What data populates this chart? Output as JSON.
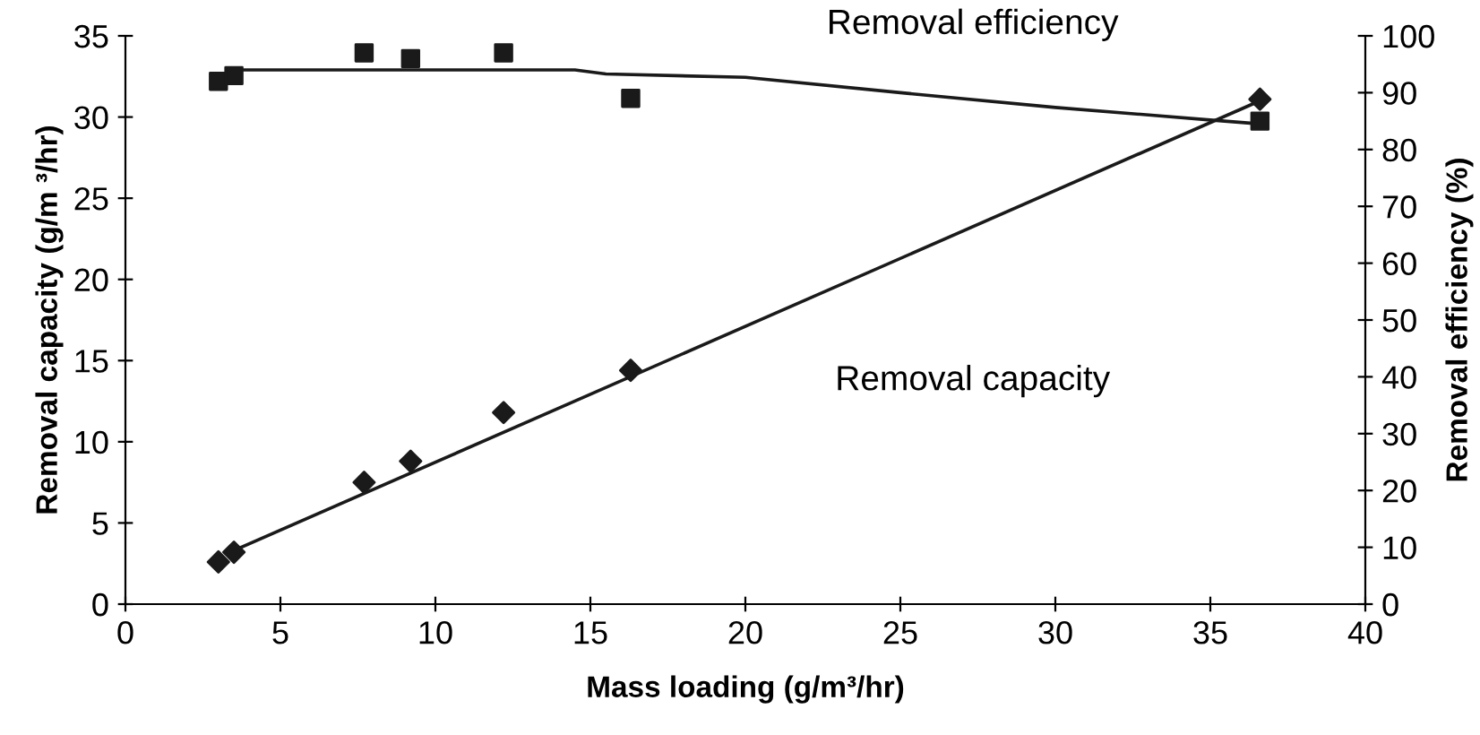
{
  "chart_data": {
    "type": "scatter",
    "xlabel": "Mass loading (g/m³/hr)",
    "ylabel": "Removal capacity (g/m ³/hr)",
    "y2label": "Removal efficiency (%)",
    "xlim": [
      0,
      40
    ],
    "xticks": [
      0,
      5,
      10,
      15,
      20,
      25,
      30,
      35,
      40
    ],
    "ylim": [
      0,
      35
    ],
    "yticks": [
      0,
      5,
      10,
      15,
      20,
      25,
      30,
      35
    ],
    "y2lim": [
      0,
      100
    ],
    "y2ticks": [
      0,
      10,
      20,
      30,
      40,
      50,
      60,
      70,
      80,
      90,
      100
    ],
    "grid": false,
    "legend": false,
    "series": [
      {
        "marker": "diamond",
        "color": "#1a1a1a",
        "x": [
          3.0,
          3.5,
          7.7,
          9.2,
          12.2,
          16.3,
          36.6
        ],
        "values": [
          2.6,
          3.2,
          7.5,
          8.8,
          11.8,
          14.4,
          31.1
        ]
      },
      {
        "marker": "square",
        "axis": "y2",
        "color": "#1a1a1a",
        "x": [
          3.0,
          3.5,
          7.7,
          9.2,
          12.2,
          16.3,
          36.6
        ],
        "values": [
          92,
          93,
          97,
          96,
          97,
          89,
          85
        ]
      },
      {
        "type": "line",
        "name": "Removal capacity",
        "marker": "none",
        "color": "#1a1a1a",
        "x": [
          3.5,
          36.6
        ],
        "values": [
          3.3,
          31.0
        ]
      },
      {
        "type": "line",
        "name": "Removal efficiency",
        "marker": "none",
        "axis": "y2",
        "color": "#1a1a1a",
        "x": [
          3.5,
          14.5,
          15.5,
          20,
          25,
          30,
          35,
          36.6
        ],
        "values": [
          94,
          94,
          93.3,
          92.7,
          90,
          87.4,
          85.2,
          84.5
        ]
      }
    ]
  }
}
